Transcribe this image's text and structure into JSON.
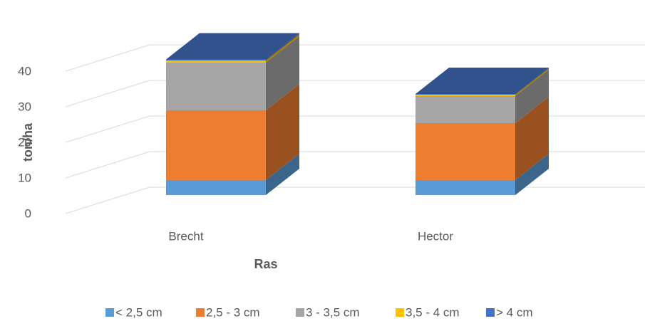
{
  "chart_data": {
    "type": "bar3d_stacked",
    "x_label": "Ras",
    "y_label": "ton/ha",
    "categories": [
      "Brecht",
      "Hector"
    ],
    "series": [
      {
        "name": "< 2,5 cm",
        "color": "#5b9bd5",
        "values": [
          4.2,
          4.2
        ]
      },
      {
        "name": "2,5 - 3 cm",
        "color": "#ed7d31",
        "values": [
          19.6,
          16
        ]
      },
      {
        "name": "3 - 3,5 cm",
        "color": "#a5a5a5",
        "values": [
          13.4,
          7.6
        ]
      },
      {
        "name": "3,5 - 4 cm",
        "color": "#ffc000",
        "values": [
          0.6,
          0.4
        ]
      },
      {
        "name": "> 4 cm",
        "color": "#4472c4",
        "values": [
          0.3,
          0.2
        ]
      }
    ],
    "ylim": [
      0,
      50
    ],
    "yticks": [
      0,
      10,
      20,
      30,
      40
    ],
    "grid": true,
    "legend": "bottom"
  }
}
